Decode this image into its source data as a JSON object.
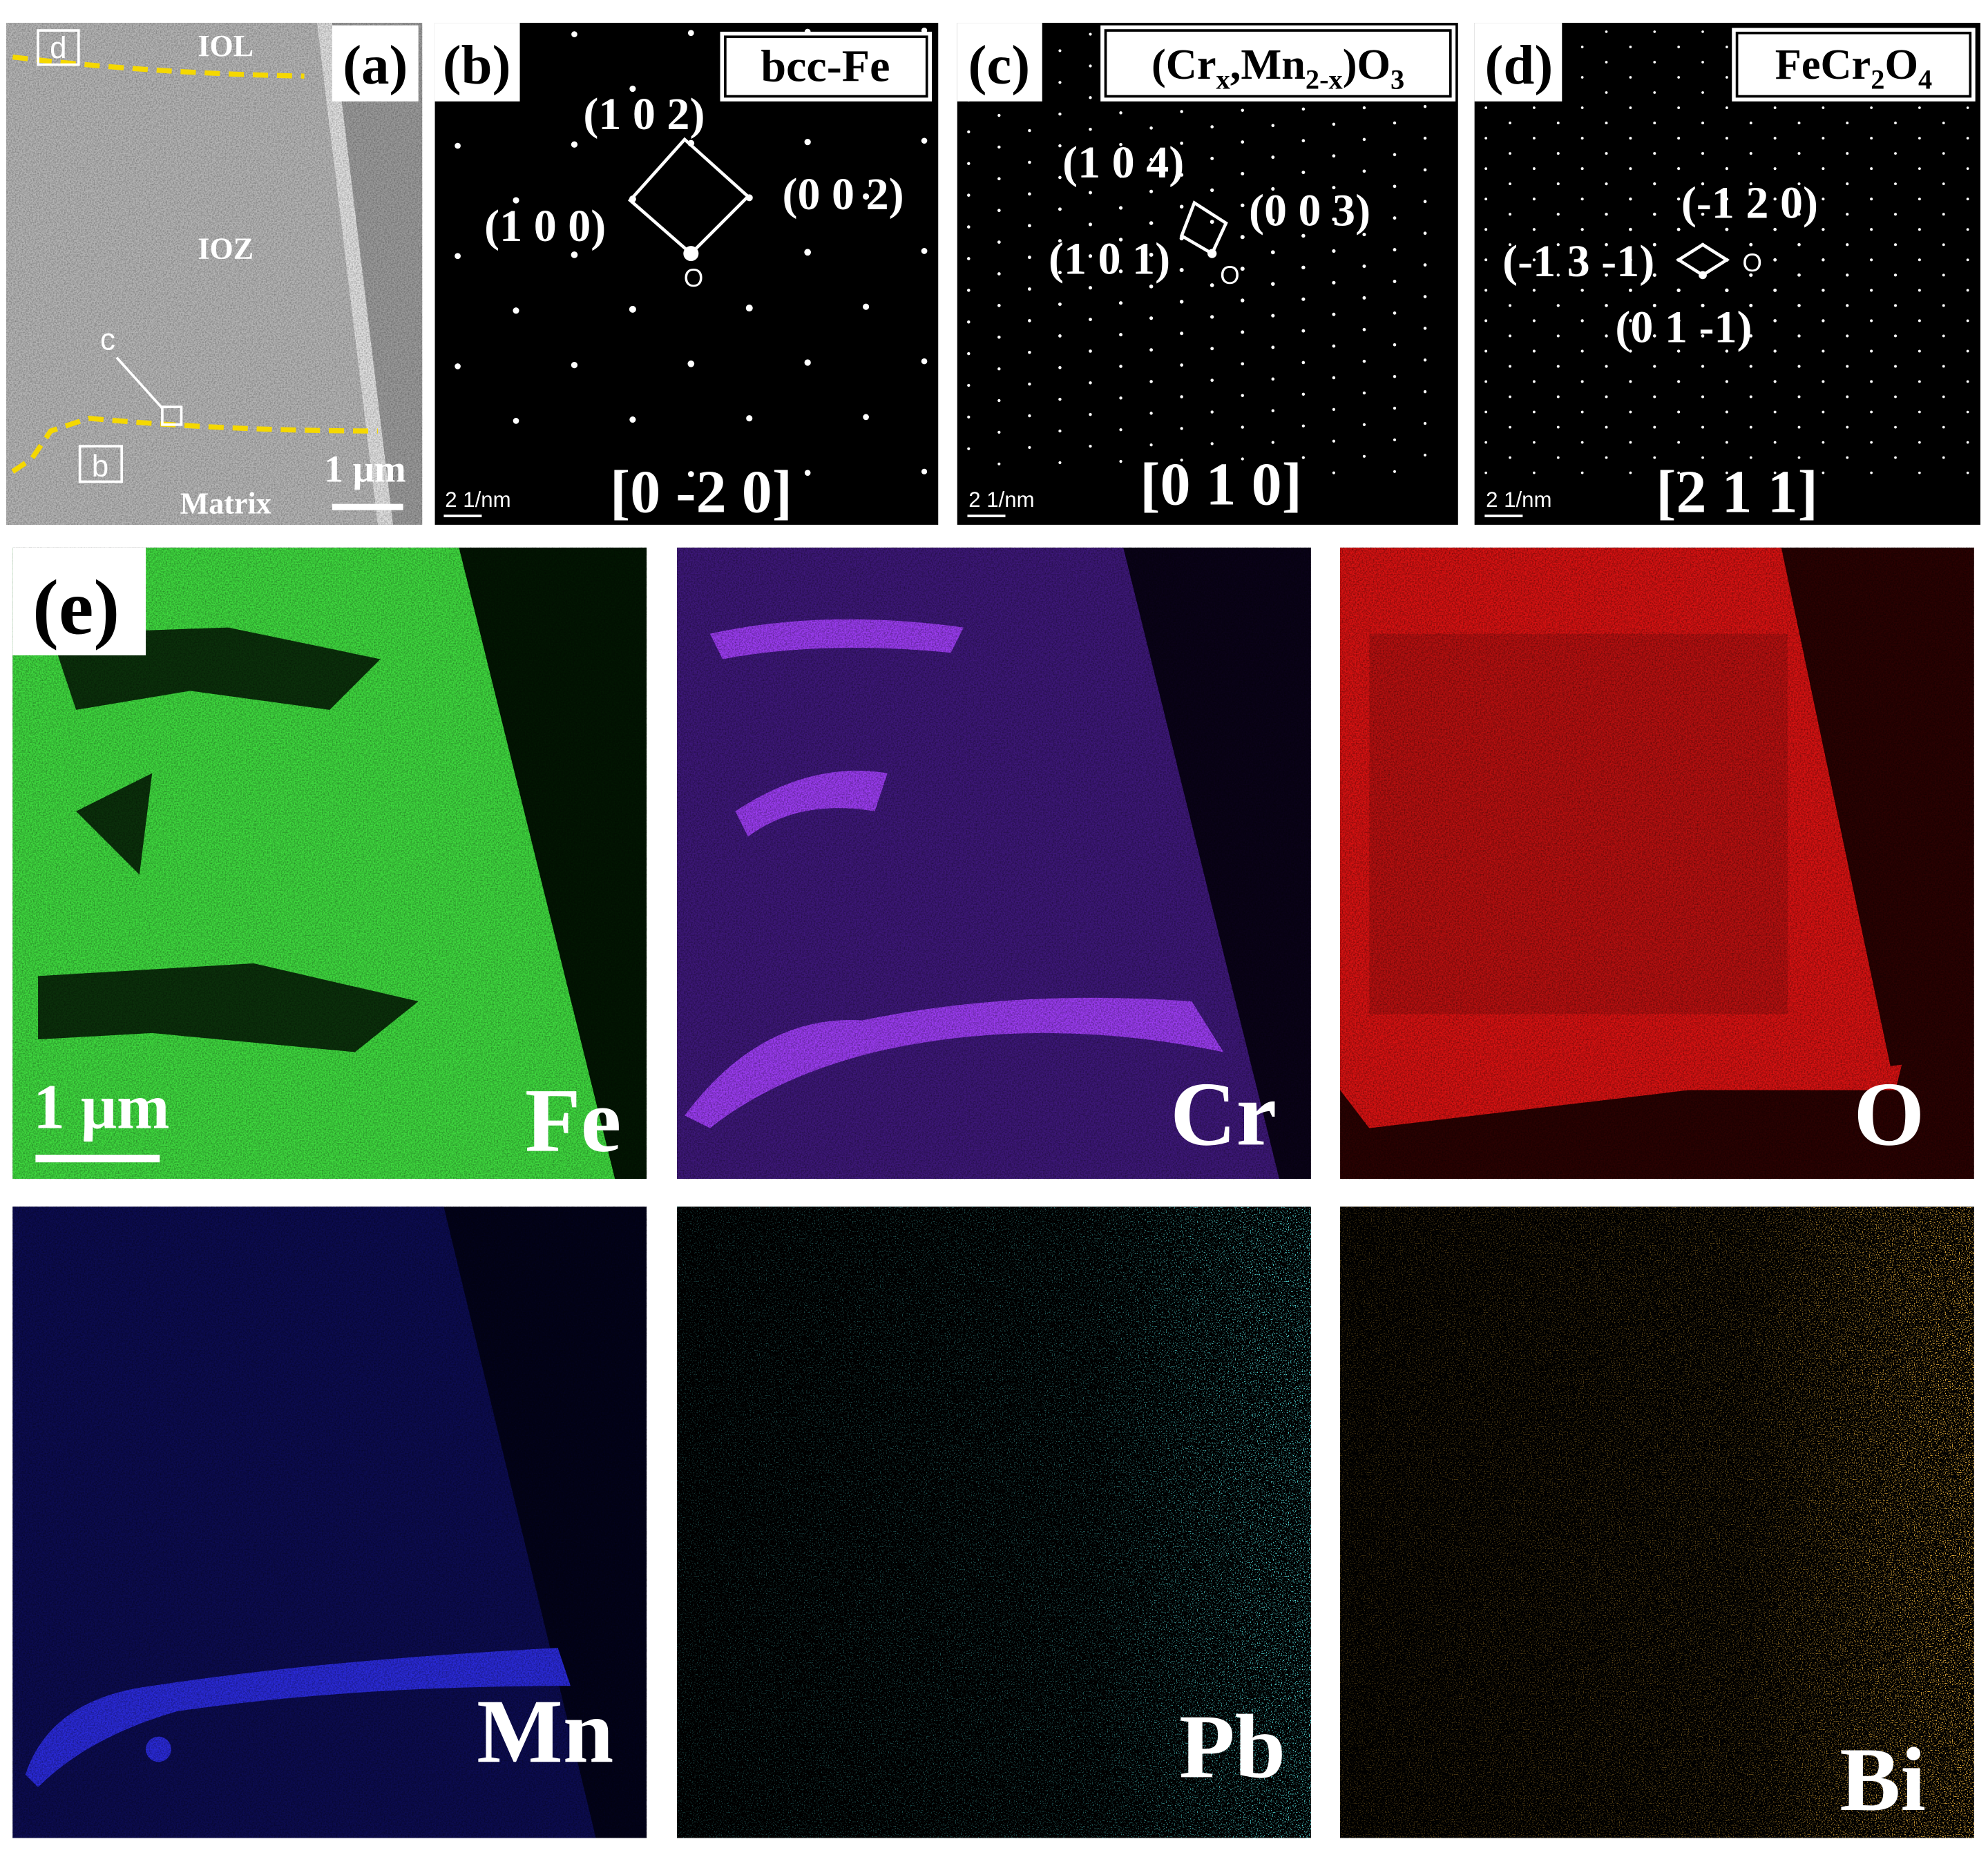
{
  "panel_a": {
    "label": "(a)",
    "layers": [
      "IOL",
      "IOZ",
      "Matrix"
    ],
    "markers": [
      "d",
      "c",
      "b"
    ],
    "scale_bar": "1 μm"
  },
  "panel_b": {
    "label": "(b)",
    "phase": [
      "bcc-Fe"
    ],
    "planes": [
      "(1 0 2)",
      "(1 0 0)",
      "(0 0 2)"
    ],
    "origin": "O",
    "zone_axis": "[0 -2 0]",
    "scale_bar": "2 1/nm"
  },
  "panel_c": {
    "label": "(c)",
    "phase": [
      "(Cr",
      "x",
      ",Mn",
      "2-x",
      ")O",
      "3"
    ],
    "planes": [
      "(1 0 4)",
      "(1 0 1)",
      "(0 0 3)"
    ],
    "origin": "O",
    "zone_axis": "[0 1 0]",
    "scale_bar": "2 1/nm"
  },
  "panel_d": {
    "label": "(d)",
    "phase": [
      "FeCr",
      "2",
      "O",
      "4"
    ],
    "planes": [
      "(-1 2 0)",
      "(-1 3 -1)",
      "(0 1 -1)"
    ],
    "origin": "O",
    "zone_axis": "[2 1 1]",
    "scale_bar": "2 1/nm"
  },
  "panel_e": {
    "label": "(e)",
    "scale_bar": "1 μm",
    "elements": [
      "Fe",
      "Cr",
      "O",
      "Mn",
      "Pb",
      "Bi"
    ]
  }
}
